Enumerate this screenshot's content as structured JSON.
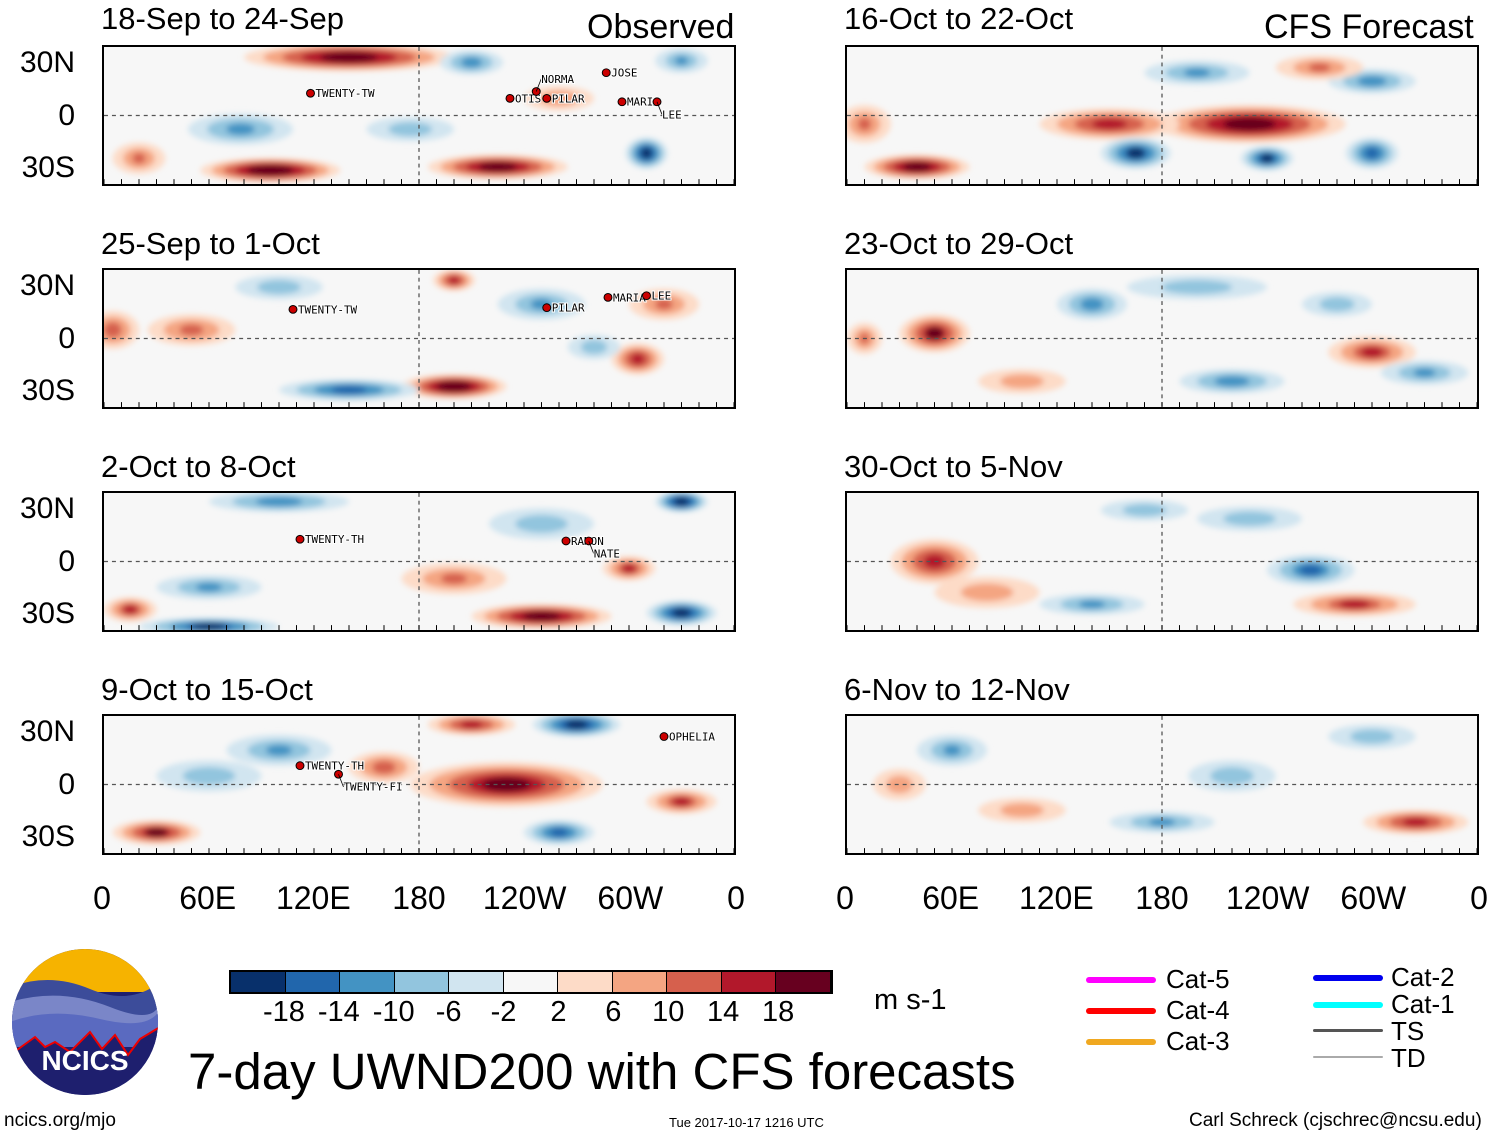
{
  "headers": {
    "observed": "Observed",
    "forecast": "CFS Forecast"
  },
  "lat_labels": [
    "30N",
    "0",
    "30S"
  ],
  "lon_labels": [
    "0",
    "60E",
    "120E",
    "180",
    "120W",
    "60W",
    "0"
  ],
  "lon_values": [
    0,
    60,
    120,
    180,
    240,
    300,
    360
  ],
  "colorbar": {
    "levels": [
      "-18",
      "-14",
      "-10",
      "-6",
      "-2",
      "2",
      "6",
      "10",
      "14",
      "18"
    ],
    "colors": [
      "#08306b",
      "#2166ac",
      "#4393c3",
      "#92c5de",
      "#d1e5f0",
      "#f7f7f7",
      "#fddbc7",
      "#f4a582",
      "#d6604d",
      "#b2182b",
      "#67001f"
    ],
    "units": "m s-1"
  },
  "legend": [
    {
      "label": "Cat-5",
      "color": "#ff00ff"
    },
    {
      "label": "Cat-4",
      "color": "#ff0000"
    },
    {
      "label": "Cat-3",
      "color": "#f0a820"
    },
    {
      "label": "Cat-2",
      "color": "#0000ee"
    },
    {
      "label": "Cat-1",
      "color": "#00ffff"
    },
    {
      "label": "TS",
      "color": "#555555"
    },
    {
      "label": "TD",
      "color": "#aaaaaa"
    }
  ],
  "logo_text": "NCICS",
  "main_title": "7-day UWND200 with CFS forecasts",
  "footer": {
    "left": "ncics.org/mjo",
    "center": "Tue 2017-10-17 1216 UTC",
    "right": "Carl Schreck (cjschrec@ncsu.edu)"
  },
  "panels": [
    {
      "title": "18-Sep to 24-Sep",
      "blobs": [
        [
          140,
          34,
          60,
          7,
          20
        ],
        [
          95,
          -32,
          40,
          6,
          22
        ],
        [
          225,
          -30,
          40,
          6,
          20
        ],
        [
          210,
          31,
          18,
          6,
          -10
        ],
        [
          78,
          -8,
          30,
          8,
          -9
        ],
        [
          310,
          -22,
          12,
          8,
          -18
        ],
        [
          175,
          -8,
          25,
          6,
          -6
        ],
        [
          260,
          10,
          20,
          6,
          7
        ],
        [
          20,
          -25,
          15,
          8,
          8
        ],
        [
          330,
          32,
          15,
          6,
          -8
        ]
      ],
      "storms": [
        {
          "name": "TWENTY-TW",
          "lon": 118,
          "lat": 13
        },
        {
          "name": "OTIS",
          "lon": 232,
          "lat": 10
        },
        {
          "name": "NORMA",
          "lon": 247,
          "lat": 14
        },
        {
          "name": "PILAR",
          "lon": 253,
          "lat": 10
        },
        {
          "name": "JOSE",
          "lon": 287,
          "lat": 25
        },
        {
          "name": "MARIA",
          "lon": 296,
          "lat": 8
        },
        {
          "name": "LEE",
          "lon": 316,
          "lat": 8
        }
      ]
    },
    {
      "title": "25-Sep to 1-Oct",
      "blobs": [
        [
          200,
          -28,
          30,
          6,
          22
        ],
        [
          140,
          -30,
          40,
          5,
          -14
        ],
        [
          305,
          -12,
          15,
          8,
          14
        ],
        [
          200,
          34,
          12,
          5,
          14
        ],
        [
          5,
          5,
          15,
          10,
          10
        ],
        [
          50,
          5,
          25,
          8,
          9
        ],
        [
          250,
          20,
          25,
          8,
          -8
        ],
        [
          320,
          20,
          20,
          8,
          8
        ],
        [
          100,
          30,
          25,
          6,
          -6
        ],
        [
          280,
          -5,
          15,
          6,
          -6
        ]
      ],
      "storms": [
        {
          "name": "TWENTY-TW",
          "lon": 108,
          "lat": 17
        },
        {
          "name": "PILAR",
          "lon": 253,
          "lat": 18
        },
        {
          "name": "MARIA",
          "lon": 288,
          "lat": 24
        },
        {
          "name": "LEE",
          "lon": 310,
          "lat": 25
        }
      ]
    },
    {
      "title": "2-Oct to 8-Oct",
      "blobs": [
        [
          250,
          -32,
          40,
          6,
          20
        ],
        [
          330,
          -30,
          20,
          6,
          -18
        ],
        [
          15,
          -28,
          15,
          6,
          12
        ],
        [
          60,
          -38,
          40,
          4,
          -16
        ],
        [
          100,
          35,
          40,
          5,
          -10
        ],
        [
          330,
          35,
          15,
          5,
          -20
        ],
        [
          200,
          -10,
          30,
          8,
          8
        ],
        [
          300,
          -4,
          15,
          6,
          12
        ],
        [
          60,
          -15,
          30,
          6,
          -8
        ],
        [
          250,
          22,
          30,
          8,
          -6
        ]
      ],
      "storms": [
        {
          "name": "TWENTY-TH",
          "lon": 112,
          "lat": 13
        },
        {
          "name": "RAMON",
          "lon": 264,
          "lat": 12
        },
        {
          "name": "NATE",
          "lon": 277,
          "lat": 12
        }
      ]
    },
    {
      "title": "9-Oct to 15-Oct",
      "blobs": [
        [
          230,
          0,
          55,
          12,
          18
        ],
        [
          30,
          -28,
          25,
          6,
          16
        ],
        [
          260,
          -28,
          20,
          6,
          -14
        ],
        [
          270,
          35,
          25,
          6,
          -18
        ],
        [
          210,
          35,
          25,
          5,
          14
        ],
        [
          160,
          10,
          20,
          8,
          10
        ],
        [
          100,
          20,
          30,
          8,
          -8
        ],
        [
          330,
          -10,
          20,
          6,
          12
        ],
        [
          60,
          5,
          30,
          8,
          -6
        ]
      ],
      "storms": [
        {
          "name": "TWENTY-TH",
          "lon": 112,
          "lat": 11
        },
        {
          "name": "TWENTY-FI",
          "lon": 134,
          "lat": 6
        },
        {
          "name": "OPHELIA",
          "lon": 320,
          "lat": 28
        }
      ]
    },
    {
      "title": "16-Oct to 22-Oct",
      "blobs": [
        [
          230,
          -5,
          55,
          10,
          20
        ],
        [
          150,
          -5,
          40,
          8,
          14
        ],
        [
          40,
          -30,
          30,
          6,
          20
        ],
        [
          165,
          -22,
          20,
          8,
          -16
        ],
        [
          240,
          -25,
          15,
          6,
          -16
        ],
        [
          300,
          -22,
          15,
          8,
          -14
        ],
        [
          300,
          20,
          25,
          6,
          -10
        ],
        [
          200,
          25,
          30,
          6,
          -8
        ],
        [
          270,
          28,
          25,
          6,
          8
        ],
        [
          10,
          -5,
          15,
          10,
          8
        ]
      ],
      "storms": []
    },
    {
      "title": "23-Oct to 29-Oct",
      "blobs": [
        [
          50,
          3,
          20,
          10,
          16
        ],
        [
          300,
          -8,
          25,
          8,
          12
        ],
        [
          140,
          20,
          20,
          8,
          -10
        ],
        [
          220,
          -25,
          30,
          6,
          -10
        ],
        [
          330,
          -20,
          25,
          6,
          -8
        ],
        [
          200,
          30,
          40,
          6,
          -6
        ],
        [
          10,
          0,
          10,
          8,
          8
        ],
        [
          100,
          -25,
          25,
          6,
          6
        ],
        [
          280,
          20,
          20,
          6,
          -6
        ]
      ],
      "storms": []
    },
    {
      "title": "30-Oct to 5-Nov",
      "blobs": [
        [
          50,
          0,
          25,
          12,
          14
        ],
        [
          265,
          -5,
          25,
          8,
          -12
        ],
        [
          290,
          -25,
          35,
          6,
          12
        ],
        [
          140,
          -25,
          30,
          5,
          -8
        ],
        [
          230,
          25,
          30,
          6,
          -6
        ],
        [
          170,
          30,
          25,
          5,
          -6
        ],
        [
          80,
          -18,
          30,
          8,
          6
        ]
      ],
      "storms": []
    },
    {
      "title": "6-Nov to 12-Nov",
      "blobs": [
        [
          325,
          -22,
          30,
          6,
          14
        ],
        [
          60,
          20,
          20,
          8,
          -8
        ],
        [
          180,
          -22,
          30,
          5,
          -8
        ],
        [
          220,
          5,
          25,
          8,
          -6
        ],
        [
          100,
          -15,
          25,
          6,
          6
        ],
        [
          300,
          28,
          25,
          6,
          -6
        ],
        [
          30,
          0,
          15,
          8,
          6
        ]
      ],
      "storms": []
    }
  ]
}
